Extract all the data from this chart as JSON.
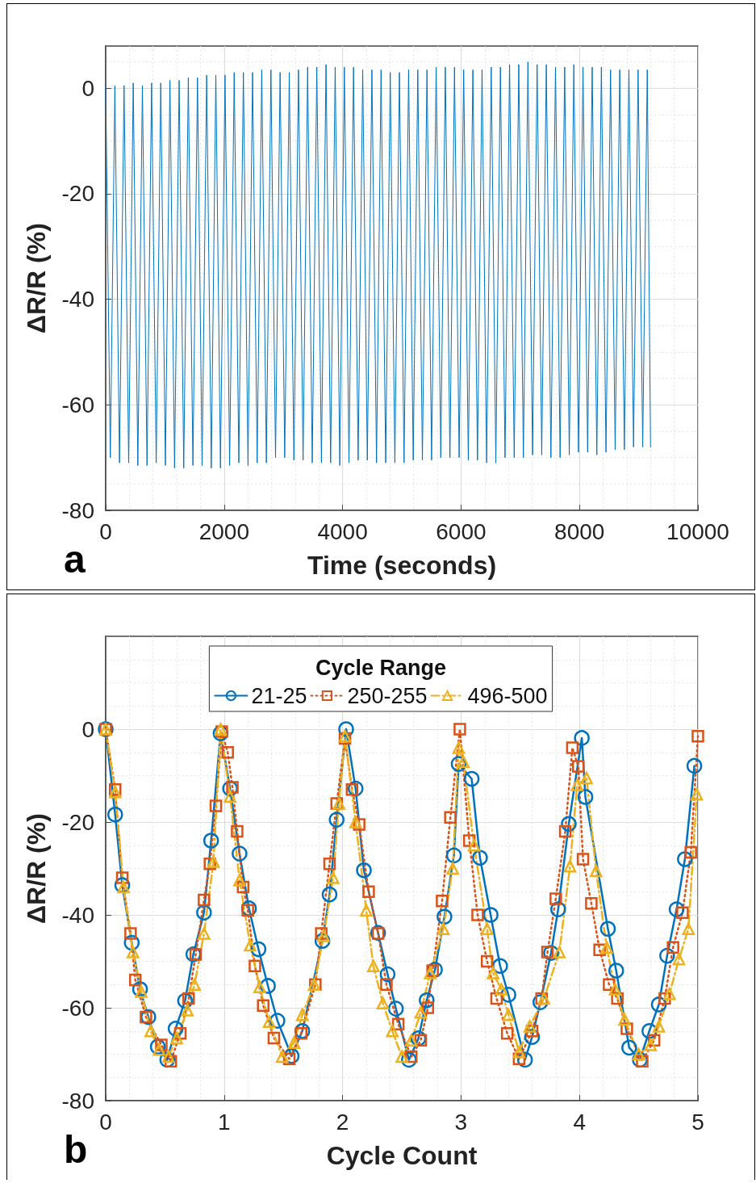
{
  "chart_data": [
    {
      "type": "line",
      "xlabel": "Time (seconds)",
      "ylabel": "ΔR/R (%)",
      "annotations": [
        "a"
      ],
      "xlim": [
        0,
        10000
      ],
      "xticks": [
        0,
        2000,
        4000,
        6000,
        8000,
        10000
      ],
      "ylim": [
        -80,
        8
      ],
      "yticks": [
        -80,
        -60,
        -40,
        -20,
        0
      ],
      "grid": true,
      "legend": false,
      "marker": "none",
      "line_style": "solid",
      "series": [
        {
          "color": "#0072bd",
          "x": [
            0,
            78,
            155,
            233,
            310,
            388,
            465,
            543,
            620,
            698,
            775,
            853,
            930,
            1008,
            1085,
            1163,
            1240,
            1318,
            1395,
            1473,
            1550,
            1628,
            1705,
            1783,
            1860,
            1938,
            2015,
            2093,
            2170,
            2248,
            2325,
            2403,
            2480,
            2558,
            2635,
            2713,
            2790,
            2868,
            2945,
            3023,
            3100,
            3178,
            3255,
            3333,
            3410,
            3488,
            3565,
            3643,
            3720,
            3798,
            3875,
            3953,
            4030,
            4108,
            4185,
            4263,
            4340,
            4418,
            4495,
            4573,
            4650,
            4728,
            4805,
            4883,
            4960,
            5038,
            5115,
            5193,
            5270,
            5348,
            5425,
            5503,
            5580,
            5658,
            5735,
            5813,
            5890,
            5968,
            6045,
            6123,
            6200,
            6278,
            6355,
            6433,
            6510,
            6588,
            6665,
            6743,
            6820,
            6898,
            6975,
            7053,
            7130,
            7208,
            7285,
            7363,
            7440,
            7518,
            7595,
            7673,
            7750,
            7828,
            7905,
            7983,
            8060,
            8138,
            8215,
            8293,
            8370,
            8448,
            8525,
            8603,
            8680,
            8758,
            8835,
            8913,
            8990,
            9068,
            9145,
            9200
          ],
          "values": [
            0,
            -70,
            0.5,
            -71,
            0.5,
            -71,
            1,
            -71.5,
            0.5,
            -71.5,
            1,
            -71,
            1,
            -71.5,
            1.5,
            -72,
            1.5,
            -72,
            2,
            -71.5,
            2,
            -71.5,
            2.5,
            -72,
            2.5,
            -72,
            2.5,
            -71.5,
            3,
            -71,
            3,
            -71.5,
            3,
            -71,
            3.5,
            -71,
            3.5,
            -70,
            3,
            -70,
            3,
            -70.5,
            3.5,
            -70.5,
            4,
            -71,
            4,
            -71,
            4.5,
            -71,
            4,
            -71.5,
            4,
            -71,
            4,
            -70.5,
            3.5,
            -70.5,
            3.5,
            -71,
            3.5,
            -71,
            3,
            -71,
            3,
            -71,
            3.5,
            -70.5,
            3.5,
            -70.5,
            3.5,
            -70.5,
            4,
            -70,
            4,
            -70,
            4,
            -70,
            3.5,
            -70.5,
            3.5,
            -70.5,
            3.5,
            -71,
            4,
            -71,
            4,
            -70,
            4.5,
            -70,
            4.5,
            -70,
            5,
            -69.5,
            4.5,
            -69.5,
            4.5,
            -70,
            4,
            -70,
            4,
            -69.5,
            4.5,
            -69,
            4,
            -69,
            4,
            -69.5,
            4,
            -69,
            3.5,
            -68.5,
            3.5,
            -68.5,
            3.5,
            -68,
            3.5,
            -68,
            3.5,
            -68
          ]
        }
      ]
    },
    {
      "type": "line",
      "xlabel": "Cycle Count",
      "ylabel": "ΔR/R (%)",
      "annotations": [
        "b"
      ],
      "legend_title": "Cycle Range",
      "xlim": [
        0,
        5
      ],
      "xticks": [
        0,
        1,
        2,
        3,
        4,
        5
      ],
      "ylim": [
        -80,
        20
      ],
      "yticks": [
        -80,
        -60,
        -40,
        -20,
        0
      ],
      "grid": true,
      "legend": "top",
      "series": [
        {
          "name": "21-25",
          "color": "#0072bd",
          "marker": "circle",
          "line_style": "solid",
          "x": [
            0,
            0.08,
            0.14,
            0.22,
            0.29,
            0.36,
            0.44,
            0.52,
            0.59,
            0.67,
            0.74,
            0.83,
            0.89,
            0.97,
            1.05,
            1.13,
            1.21,
            1.29,
            1.37,
            1.45,
            1.57,
            1.66,
            1.83,
            1.89,
            1.95,
            2.03,
            2.11,
            2.18,
            2.3,
            2.38,
            2.45,
            2.56,
            2.64,
            2.71,
            2.78,
            2.86,
            2.94,
            2.98,
            3.09,
            3.16,
            3.25,
            3.33,
            3.4,
            3.54,
            3.6,
            3.67,
            3.76,
            3.82,
            3.91,
            4.02,
            4.05,
            4.24,
            4.31,
            4.42,
            4.51,
            4.59,
            4.67,
            4.74,
            4.82,
            4.89,
            4.97
          ],
          "values": [
            0,
            -18.4,
            -33.6,
            -46,
            -56,
            -62,
            -68.4,
            -71.2,
            -64.5,
            -58.5,
            -48.5,
            -39.5,
            -24,
            -0.9,
            -12.8,
            -26.8,
            -38.6,
            -47.4,
            -55.3,
            -62.8,
            -70.4,
            -65,
            -45.6,
            -35.6,
            -19.5,
            0,
            -12.8,
            -30.4,
            -43.9,
            -52.8,
            -60.2,
            -71.2,
            -66.6,
            -58.4,
            -51.8,
            -40.4,
            -27.2,
            -7.5,
            -10.7,
            -27.7,
            -40,
            -51,
            -57.2,
            -71.2,
            -66.3,
            -58.8,
            -48.2,
            -38.8,
            -20.4,
            -1.9,
            -14.6,
            -43,
            -52,
            -68.6,
            -71.2,
            -65,
            -59.3,
            -48.8,
            -38.8,
            -28,
            -7.9
          ]
        },
        {
          "name": "250-255",
          "color": "#d95319",
          "marker": "square",
          "line_style": "dotted",
          "x": [
            0,
            0.08,
            0.14,
            0.21,
            0.25,
            0.34,
            0.47,
            0.55,
            0.63,
            0.7,
            0.76,
            0.83,
            0.88,
            0.93,
            0.98,
            1.03,
            1.07,
            1.11,
            1.16,
            1.2,
            1.26,
            1.33,
            1.42,
            1.55,
            1.65,
            1.77,
            1.82,
            1.89,
            1.95,
            2.02,
            2.08,
            2.14,
            2.22,
            2.3,
            2.37,
            2.47,
            2.58,
            2.66,
            2.72,
            2.76,
            2.84,
            2.91,
            2.99,
            3.07,
            3.14,
            3.22,
            3.3,
            3.39,
            3.49,
            3.6,
            3.68,
            3.73,
            3.8,
            3.88,
            3.94,
            3.99,
            4.03,
            4.1,
            4.17,
            4.25,
            4.32,
            4.4,
            4.53,
            4.63,
            4.72,
            4.79,
            4.87,
            4.94,
            5
          ],
          "values": [
            0,
            -13,
            -32,
            -44,
            -54,
            -62,
            -68,
            -71.5,
            -65.5,
            -58,
            -48.5,
            -36.8,
            -29,
            -16.5,
            -0.5,
            -5,
            -12.5,
            -22,
            -34,
            -39,
            -51,
            -59.5,
            -66.5,
            -71,
            -65.5,
            -55,
            -44,
            -29,
            -16,
            -2,
            -13,
            -20.5,
            -35,
            -44,
            -55,
            -63.5,
            -70.5,
            -67,
            -60,
            -52,
            -37,
            -19,
            0,
            -24,
            -40,
            -50,
            -58,
            -65.5,
            -71,
            -65,
            -58,
            -48,
            -36.5,
            -22,
            -4,
            -8,
            -28,
            -37.5,
            -47.5,
            -55,
            -58,
            -64.5,
            -71.5,
            -67,
            -58,
            -47,
            -39.5,
            -26.5,
            -1.5
          ]
        },
        {
          "name": "496-500",
          "color": "#edb120",
          "marker": "triangle",
          "line_style": "dashed",
          "x": [
            0,
            0.08,
            0.15,
            0.23,
            0.3,
            0.38,
            0.45,
            0.53,
            0.6,
            0.69,
            0.75,
            0.83,
            0.91,
            0.97,
            1.05,
            1.13,
            1.22,
            1.3,
            1.38,
            1.49,
            1.59,
            1.66,
            1.76,
            1.84,
            1.92,
            1.97,
            2.02,
            2.11,
            2.2,
            2.26,
            2.34,
            2.42,
            2.5,
            2.58,
            2.66,
            2.74,
            2.85,
            2.93,
            2.98,
            3.02,
            3.11,
            3.22,
            3.27,
            3.34,
            3.4,
            3.49,
            3.58,
            3.7,
            3.83,
            3.92,
            3.98,
            4.06,
            4.14,
            4.23,
            4.3,
            4.38,
            4.5,
            4.6,
            4.67,
            4.76,
            4.84,
            4.92,
            4.99
          ],
          "values": [
            0,
            -13.5,
            -34,
            -48,
            -56.5,
            -65,
            -69,
            -70.5,
            -66.5,
            -60.5,
            -55,
            -44,
            -28.5,
            0,
            -14.5,
            -32.5,
            -46.5,
            -55.5,
            -63,
            -70.5,
            -67.5,
            -61.5,
            -55,
            -44.5,
            -32,
            -16,
            -1.5,
            -20,
            -39,
            -51,
            -59,
            -65,
            -70.5,
            -67,
            -61,
            -52.5,
            -43,
            -30,
            -4,
            -7,
            -25,
            -43,
            -52.5,
            -56,
            -61.5,
            -69.5,
            -64,
            -58,
            -48,
            -29.5,
            -12,
            -10.5,
            -30.5,
            -47,
            -56,
            -62.5,
            -70,
            -68,
            -64,
            -57,
            -49.5,
            -43,
            -14
          ]
        }
      ]
    }
  ]
}
